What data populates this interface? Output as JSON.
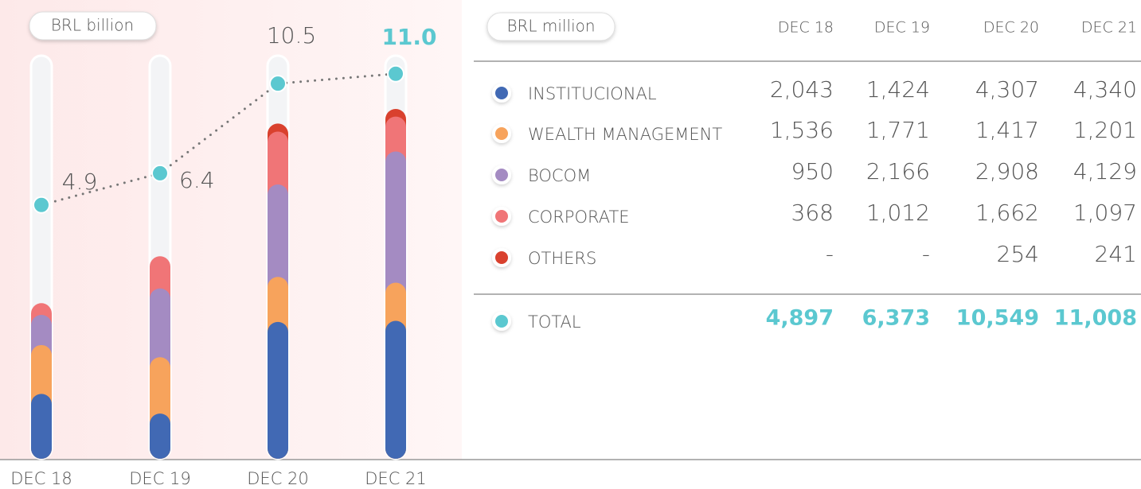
{
  "chart_data": {
    "type": "bar",
    "stacked": true,
    "unit": "BRL billion",
    "table_unit": "BRL million",
    "categories": [
      "DEC 18",
      "DEC 19",
      "DEC 20",
      "DEC 21"
    ],
    "series": [
      {
        "name": "INSTITUCIONAL",
        "color": "#4169b4",
        "values": [
          2043,
          1424,
          4307,
          4340
        ],
        "value_labels": [
          "2,043",
          "1,424",
          "4,307",
          "4,340"
        ]
      },
      {
        "name": "WEALTH MANAGEMENT",
        "color": "#f7a35c",
        "values": [
          1536,
          1771,
          1417,
          1201
        ],
        "value_labels": [
          "1,536",
          "1,771",
          "1,417",
          "1,201"
        ]
      },
      {
        "name": "BOCOM",
        "color": "#a48bc2",
        "values": [
          950,
          2166,
          2908,
          4129
        ],
        "value_labels": [
          "950",
          "2,166",
          "2,908",
          "4,129"
        ]
      },
      {
        "name": "CORPORATE",
        "color": "#f07577",
        "values": [
          368,
          1012,
          1662,
          1097
        ],
        "value_labels": [
          "368",
          "1,012",
          "1,662",
          "1,097"
        ]
      },
      {
        "name": "OTHERS",
        "color": "#d9412e",
        "values": [
          null,
          null,
          254,
          241
        ],
        "value_labels": [
          "-",
          "-",
          "254",
          "241"
        ]
      }
    ],
    "total": {
      "name": "TOTAL",
      "color": "#5bc8d0",
      "values": [
        4897,
        6373,
        10549,
        11008
      ],
      "value_labels": [
        "4,897",
        "6,373",
        "10,549",
        "11,008"
      ],
      "chart_labels": [
        "4.9",
        "6.4",
        "10.5",
        "11.0"
      ]
    }
  }
}
